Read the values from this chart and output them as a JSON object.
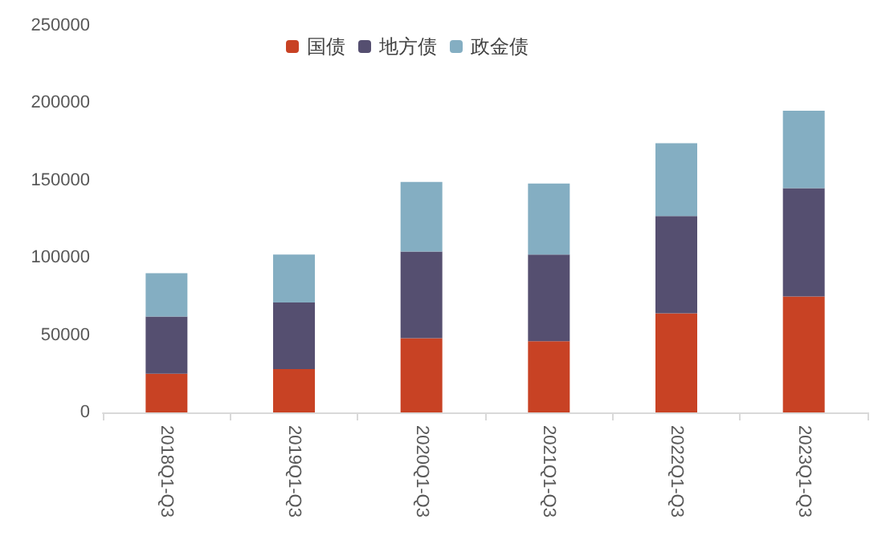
{
  "chart_data": {
    "type": "bar",
    "stacked": true,
    "categories": [
      "2018Q1-Q3",
      "2019Q1-Q3",
      "2020Q1-Q3",
      "2021Q1-Q3",
      "2022Q1-Q3",
      "2023Q1-Q3"
    ],
    "series": [
      {
        "name": "国债",
        "color": "#c84224",
        "values": [
          25000,
          28000,
          48000,
          46000,
          64000,
          75000
        ]
      },
      {
        "name": "地方债",
        "color": "#554f70",
        "values": [
          37000,
          43000,
          56000,
          56000,
          63000,
          70000
        ]
      },
      {
        "name": "政金债",
        "color": "#84aec2",
        "values": [
          28000,
          31000,
          45000,
          46000,
          47000,
          50000
        ]
      }
    ],
    "ylim": [
      0,
      250000
    ],
    "yticks": [
      0,
      50000,
      100000,
      150000,
      200000,
      250000
    ],
    "grid": false,
    "legend": "top"
  }
}
